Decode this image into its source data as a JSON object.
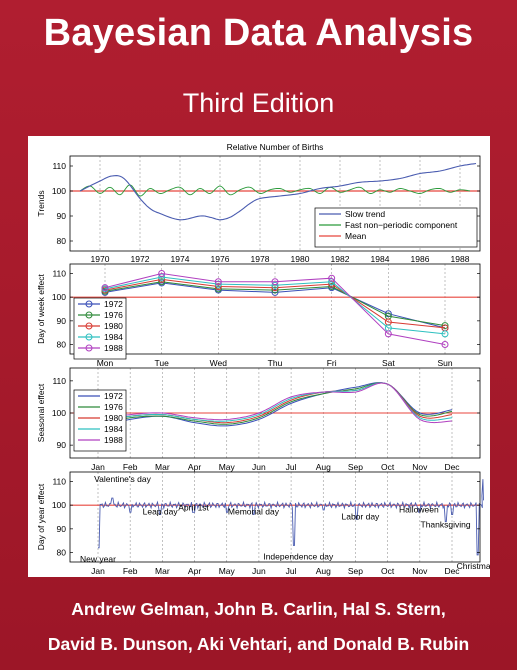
{
  "book": {
    "title": "Bayesian Data Analysis",
    "edition": "Third Edition",
    "authors_line1": "Andrew Gelman, John B. Carlin, Hal S. Stern,",
    "authors_line2": "David B. Dunson, Aki Vehtari, and Donald B. Rubin"
  },
  "colors": {
    "background": "#a81c2c",
    "reference_line": "#e8463e",
    "slow_trend": "#4a5cb0",
    "fast_component": "#2a9a3a",
    "mean": "#e8463e",
    "year_1972": "#3a4fb8",
    "year_1976": "#2f8a3a",
    "year_1980": "#d83a32",
    "year_1984": "#2ec0c0",
    "year_1988": "#b040c0"
  },
  "chart_data": [
    {
      "type": "line",
      "title": "Relative Number of Births",
      "ylabel": "Trends",
      "xlim": [
        1968.5,
        1989
      ],
      "ylim": [
        76,
        114
      ],
      "xticks": [
        1970,
        1972,
        1974,
        1976,
        1978,
        1980,
        1982,
        1984,
        1986,
        1988
      ],
      "yticks": [
        80,
        90,
        100,
        110
      ],
      "legend": "bottom-right",
      "series": [
        {
          "name": "Slow trend",
          "x": [
            1969,
            1970,
            1970.6,
            1971.2,
            1972,
            1972.5,
            1973,
            1974,
            1975,
            1975.5,
            1976,
            1976.5,
            1977,
            1977.5,
            1978,
            1979,
            1980,
            1981,
            1982,
            1983,
            1984,
            1985,
            1986,
            1987,
            1988,
            1988.8
          ],
          "y": [
            100,
            104,
            106,
            105,
            97,
            93,
            91,
            88.5,
            90,
            89.5,
            88.5,
            89.5,
            92,
            95,
            97,
            98,
            99,
            101,
            102,
            103.5,
            104,
            105,
            107,
            108,
            110,
            111
          ]
        },
        {
          "name": "Fast non−periodic component",
          "x": [
            1969,
            1969.5,
            1970,
            1970.5,
            1971,
            1971.5,
            1972,
            1972.5,
            1973,
            1973.5,
            1974,
            1974.5,
            1975,
            1975.5,
            1976,
            1976.5,
            1977,
            1977.5,
            1978,
            1978.5,
            1979,
            1979.5,
            1980,
            1980.5,
            1981,
            1981.5,
            1982,
            1982.5,
            1983,
            1983.5,
            1984,
            1984.5,
            1985,
            1985.5,
            1986,
            1986.5,
            1987,
            1987.5,
            1988,
            1988.5
          ],
          "y": [
            100,
            102,
            99,
            101.5,
            98.5,
            102.5,
            98,
            101,
            99,
            100.5,
            101.5,
            98.5,
            101,
            99,
            102,
            98.5,
            100.5,
            101.5,
            99,
            100.5,
            101,
            99.5,
            100.5,
            101,
            99,
            101.5,
            99.5,
            100.5,
            101.5,
            99,
            100.5,
            99.5,
            101,
            100,
            99,
            100.5,
            101,
            99.5,
            100.5,
            100
          ]
        },
        {
          "name": "Mean",
          "x": [
            1968.5,
            1989
          ],
          "y": [
            100,
            100
          ]
        }
      ]
    },
    {
      "type": "line",
      "ylabel": "Day of week effect",
      "categories": [
        "Mon",
        "Tue",
        "Wed",
        "Thu",
        "Fri",
        "Sat",
        "Sun"
      ],
      "ylim": [
        76,
        114
      ],
      "yticks": [
        80,
        90,
        100,
        110
      ],
      "legend": "top-left",
      "series": [
        {
          "name": "1972",
          "values": [
            102,
            106,
            103,
            102,
            104,
            93,
            87
          ]
        },
        {
          "name": "1976",
          "values": [
            102.5,
            106.5,
            103.5,
            103,
            104.5,
            92,
            88
          ]
        },
        {
          "name": "1980",
          "values": [
            103,
            107.5,
            104.5,
            104,
            105.5,
            89.5,
            87
          ]
        },
        {
          "name": "1984",
          "values": [
            103.5,
            108.5,
            105.5,
            105,
            106.5,
            87,
            84.5
          ]
        },
        {
          "name": "1988",
          "values": [
            104,
            110,
            106.5,
            106.5,
            108,
            84.5,
            80
          ]
        }
      ]
    },
    {
      "type": "line",
      "ylabel": "Seasonal effect",
      "categories": [
        "Jan",
        "Feb",
        "Mar",
        "Apr",
        "May",
        "Jun",
        "Jul",
        "Aug",
        "Sep",
        "Oct",
        "Nov",
        "Dec"
      ],
      "ylim": [
        86,
        114
      ],
      "yticks": [
        90,
        100,
        110
      ],
      "legend": "top-left",
      "series": [
        {
          "name": "1972",
          "values": [
            96,
            98,
            99,
            97,
            96,
            98,
            103,
            106,
            108,
            109,
            100,
            101
          ]
        },
        {
          "name": "1976",
          "values": [
            96.5,
            98.5,
            99,
            97.5,
            96.5,
            98.5,
            103.5,
            106,
            107.5,
            109,
            99.5,
            100.5
          ]
        },
        {
          "name": "1980",
          "values": [
            97,
            99,
            99.5,
            98,
            97,
            99,
            104,
            106.5,
            107,
            109,
            99,
            99.5
          ]
        },
        {
          "name": "1984",
          "values": [
            97.5,
            99,
            99.5,
            98,
            97.5,
            99.5,
            104.5,
            106.5,
            107,
            109,
            98.5,
            98.5
          ]
        },
        {
          "name": "1988",
          "values": [
            98,
            99.5,
            100,
            98.5,
            98,
            100,
            105,
            106.5,
            106.5,
            109,
            98,
            97.5
          ]
        }
      ]
    },
    {
      "type": "line",
      "ylabel": "Day of year effect",
      "categories": [
        "Jan",
        "Feb",
        "Mar",
        "Apr",
        "May",
        "Jun",
        "Jul",
        "Aug",
        "Sep",
        "Oct",
        "Nov",
        "Dec"
      ],
      "ylim": [
        76,
        114
      ],
      "yticks": [
        80,
        90,
        100,
        110
      ],
      "annotations": [
        {
          "text": "New year",
          "month": 1.0,
          "y": 82
        },
        {
          "text": "Valentine's day",
          "month": 1.45,
          "y": 103
        },
        {
          "text": "Leap day",
          "month": 2.93,
          "y": 96
        },
        {
          "text": "April 1st",
          "month": 3.97,
          "y": 97
        },
        {
          "text": "Memorial day",
          "month": 5.83,
          "y": 96
        },
        {
          "text": "Independence day",
          "month": 7.1,
          "y": 83
        },
        {
          "text": "Labor day",
          "month": 9.03,
          "y": 94
        },
        {
          "text": "Halloween",
          "month": 10.97,
          "y": 97
        },
        {
          "text": "Thanksgiving",
          "month": 11.8,
          "y": 93
        },
        {
          "text": "Christmas",
          "month": 12.8,
          "y": 79
        }
      ]
    }
  ]
}
